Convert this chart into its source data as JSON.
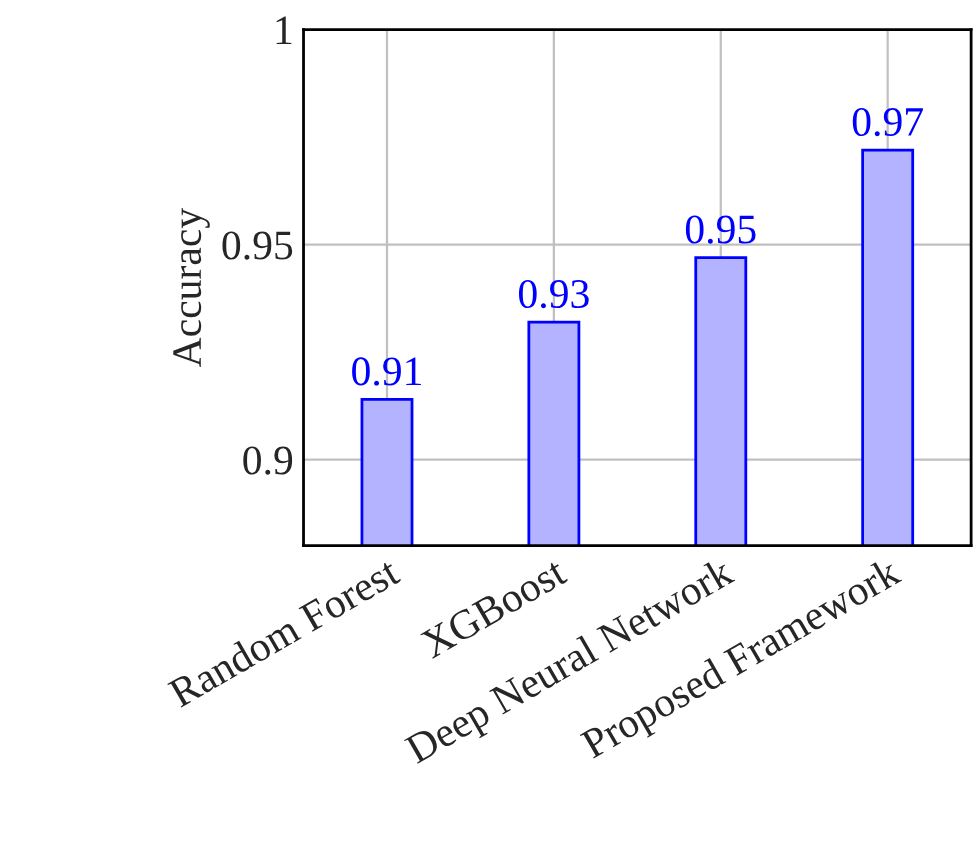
{
  "chart_data": {
    "type": "bar",
    "ylabel": "Accuracy",
    "categories": [
      "Random Forest",
      "XGBoost",
      "Deep Neural Network",
      "Proposed Framework"
    ],
    "series": [
      {
        "color": "#b3b3ff",
        "values": [
          0.914,
          0.932,
          0.947,
          0.972
        ],
        "value_labels": [
          "0.91",
          "0.93",
          "0.95",
          "0.97"
        ]
      }
    ],
    "ylim": [
      0.88,
      1
    ],
    "yticks": [
      0.9,
      0.95,
      1
    ],
    "grid": true
  }
}
